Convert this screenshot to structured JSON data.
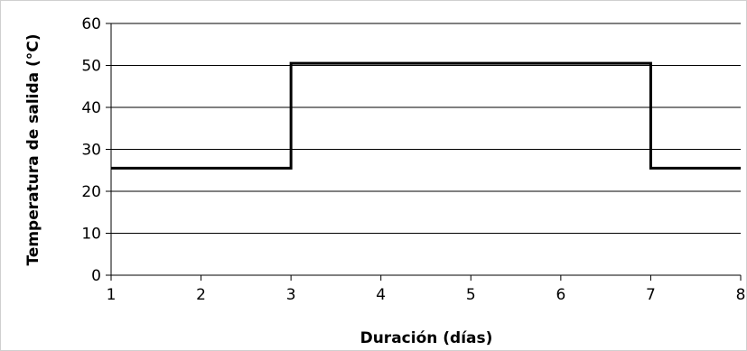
{
  "chart_data": {
    "type": "line",
    "title": "",
    "xlabel": "Duración (días)",
    "ylabel": "Temperatura de salida (°C)",
    "xlim": [
      1,
      8
    ],
    "ylim": [
      0,
      60
    ],
    "x_ticks": [
      "1",
      "2",
      "3",
      "4",
      "5",
      "6",
      "7",
      "8"
    ],
    "y_ticks": [
      "0",
      "10",
      "20",
      "30",
      "40",
      "50",
      "60"
    ],
    "grid": "horizontal",
    "legend": "none",
    "series": [
      {
        "color": "#000000",
        "points": [
          [
            1,
            25.5
          ],
          [
            3,
            25.5
          ],
          [
            3,
            50.5
          ],
          [
            7,
            50.5
          ],
          [
            7,
            25.5
          ],
          [
            8,
            25.5
          ]
        ]
      }
    ]
  }
}
